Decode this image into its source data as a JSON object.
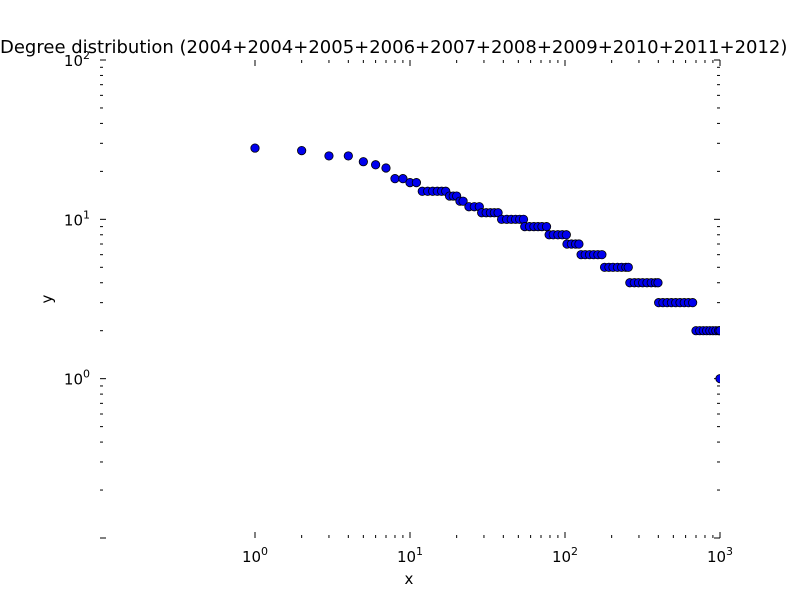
{
  "chart_data": {
    "type": "scatter",
    "title": "Degree distribution (2004+2004+2005+2006+2007+2008+2009+2010+2011+2012)",
    "xlabel": "x",
    "ylabel": "y",
    "xscale": "log",
    "yscale": "log",
    "xlim": [
      1,
      1000
    ],
    "ylim": [
      0.1,
      100
    ],
    "grid": false,
    "x_ticks": [
      {
        "base": "10",
        "exp": "0",
        "value": 1
      },
      {
        "base": "10",
        "exp": "1",
        "value": 10
      },
      {
        "base": "10",
        "exp": "2",
        "value": 100
      },
      {
        "base": "10",
        "exp": "3",
        "value": 1000
      }
    ],
    "y_ticks": [
      {
        "base": "10",
        "exp": "0",
        "value": 1
      },
      {
        "base": "10",
        "exp": "1",
        "value": 10
      },
      {
        "base": "10",
        "exp": "2",
        "value": 100
      }
    ],
    "marker_color": "#0000ee",
    "marker_edge_color": "#000000",
    "series": [
      {
        "points": [
          [
            1,
            28
          ],
          [
            2,
            27
          ],
          [
            3,
            25
          ],
          [
            4,
            25
          ],
          [
            5,
            23
          ],
          [
            6,
            22
          ],
          [
            7,
            21
          ],
          [
            8,
            18
          ],
          [
            9,
            18
          ],
          [
            10,
            17
          ],
          [
            11,
            17
          ],
          [
            12,
            15
          ],
          [
            13,
            15
          ],
          [
            14,
            15
          ],
          [
            15,
            15
          ],
          [
            16,
            15
          ],
          [
            17,
            15
          ],
          [
            18,
            14
          ],
          [
            19,
            14
          ],
          [
            20,
            14
          ],
          [
            21,
            13
          ],
          [
            22,
            13
          ],
          [
            24,
            12
          ],
          [
            26,
            12
          ],
          [
            28,
            12
          ],
          [
            29,
            11
          ],
          [
            31,
            11
          ],
          [
            33,
            11
          ],
          [
            35,
            11
          ],
          [
            37,
            11
          ],
          [
            39,
            10
          ],
          [
            42,
            10
          ],
          [
            45,
            10
          ],
          [
            48,
            10
          ],
          [
            51,
            10
          ],
          [
            54,
            10
          ],
          [
            55,
            9
          ],
          [
            59,
            9
          ],
          [
            63,
            9
          ],
          [
            67,
            9
          ],
          [
            71,
            9
          ],
          [
            76,
            9
          ],
          [
            79,
            8
          ],
          [
            84,
            8
          ],
          [
            90,
            8
          ],
          [
            96,
            8
          ],
          [
            102,
            8
          ],
          [
            103,
            7
          ],
          [
            110,
            7
          ],
          [
            117,
            7
          ],
          [
            123,
            7
          ],
          [
            127,
            6
          ],
          [
            135,
            6
          ],
          [
            144,
            6
          ],
          [
            153,
            6
          ],
          [
            163,
            6
          ],
          [
            173,
            6
          ],
          [
            180,
            5
          ],
          [
            192,
            5
          ],
          [
            204,
            5
          ],
          [
            218,
            5
          ],
          [
            232,
            5
          ],
          [
            247,
            5
          ],
          [
            256,
            5
          ],
          [
            262,
            4
          ],
          [
            280,
            4
          ],
          [
            298,
            4
          ],
          [
            317,
            4
          ],
          [
            338,
            4
          ],
          [
            360,
            4
          ],
          [
            383,
            4
          ],
          [
            398,
            4
          ],
          [
            402,
            3
          ],
          [
            428,
            3
          ],
          [
            456,
            3
          ],
          [
            486,
            3
          ],
          [
            518,
            3
          ],
          [
            552,
            3
          ],
          [
            588,
            3
          ],
          [
            626,
            3
          ],
          [
            666,
            3
          ],
          [
            700,
            2
          ],
          [
            740,
            2
          ],
          [
            780,
            2
          ],
          [
            820,
            2
          ],
          [
            860,
            2
          ],
          [
            900,
            2
          ],
          [
            940,
            2
          ],
          [
            980,
            2
          ],
          [
            1000,
            2
          ],
          [
            1000,
            1
          ]
        ]
      }
    ]
  }
}
